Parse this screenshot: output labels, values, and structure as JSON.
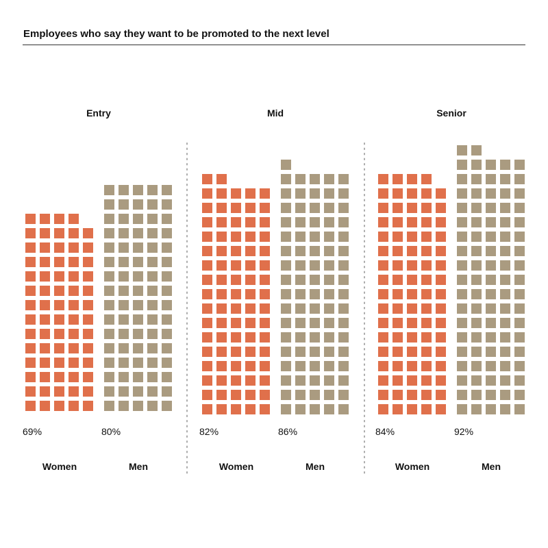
{
  "title": "Employees who say they want to be promoted to the next level",
  "chart_data": {
    "type": "waffle",
    "title": "Employees who say they want to be promoted to the next level",
    "unit": "%",
    "colors": {
      "Women": "#e0704b",
      "Men": "#aa9b80"
    },
    "groups": [
      {
        "label": "Entry",
        "bars": [
          {
            "name": "Women",
            "value": 69,
            "label": "69%"
          },
          {
            "name": "Men",
            "value": 80,
            "label": "80%"
          }
        ]
      },
      {
        "label": "Mid",
        "bars": [
          {
            "name": "Women",
            "value": 82,
            "label": "82%"
          },
          {
            "name": "Men",
            "value": 86,
            "label": "86%"
          }
        ]
      },
      {
        "label": "Senior",
        "bars": [
          {
            "name": "Women",
            "value": 84,
            "label": "84%"
          },
          {
            "name": "Men",
            "value": 92,
            "label": "92%"
          }
        ]
      }
    ]
  }
}
